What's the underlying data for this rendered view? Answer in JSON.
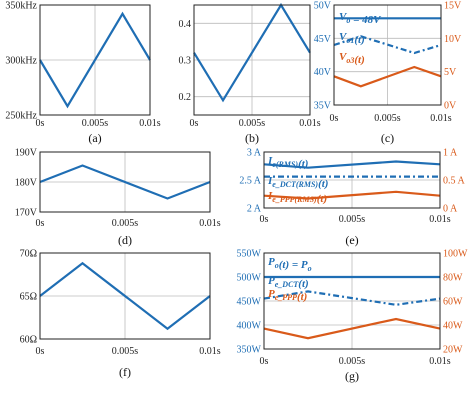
{
  "colors": {
    "blue": "#1f6eb4",
    "orange": "#d95a1a",
    "grid": "#bbbbbb",
    "frame": "#222222"
  },
  "chart_data": [
    {
      "id": "a",
      "caption": "(a)",
      "type": "line",
      "xlim": [
        0,
        0.01
      ],
      "ylim": [
        250,
        350
      ],
      "xticks": [
        {
          "v": 0,
          "label": "0s"
        },
        {
          "v": 0.005,
          "label": "0.005s"
        },
        {
          "v": 0.01,
          "label": "0.01s"
        }
      ],
      "yticks": [
        {
          "v": 250,
          "label": "250kHz"
        },
        {
          "v": 300,
          "label": "300kHz"
        },
        {
          "v": 350,
          "label": "350kHz"
        }
      ],
      "series": [
        {
          "axis": "left",
          "color": "blue",
          "dash": "",
          "x": [
            0,
            0.0025,
            0.0075,
            0.01
          ],
          "y": [
            300,
            258,
            342,
            300
          ]
        }
      ]
    },
    {
      "id": "b",
      "caption": "(b)",
      "type": "line",
      "xlim": [
        0,
        0.01
      ],
      "ylim": [
        0.15,
        0.45
      ],
      "xticks": [
        {
          "v": 0,
          "label": "0s"
        },
        {
          "v": 0.005,
          "label": "0.005s"
        },
        {
          "v": 0.01,
          "label": "0.01s"
        }
      ],
      "yticks": [
        {
          "v": 0.2,
          "label": "0.2"
        },
        {
          "v": 0.3,
          "label": "0.3"
        },
        {
          "v": 0.4,
          "label": "0.4"
        }
      ],
      "series": [
        {
          "axis": "left",
          "color": "blue",
          "dash": "",
          "x": [
            0,
            0.0025,
            0.0075,
            0.01
          ],
          "y": [
            0.32,
            0.19,
            0.45,
            0.32
          ]
        }
      ]
    },
    {
      "id": "c",
      "caption": "(c)",
      "type": "line",
      "xlim": [
        0,
        0.01
      ],
      "ylim": [
        35,
        50
      ],
      "ylim_right": [
        0,
        15
      ],
      "xticks": [
        {
          "v": 0,
          "label": "0s"
        },
        {
          "v": 0.005,
          "label": "0.005s"
        },
        {
          "v": 0.01,
          "label": "0.01s"
        }
      ],
      "yticks": [
        {
          "v": 35,
          "label": "35V"
        },
        {
          "v": 40,
          "label": "40V"
        },
        {
          "v": 45,
          "label": "45V"
        },
        {
          "v": 50,
          "label": "50V"
        }
      ],
      "yticks_right": [
        {
          "v": 0,
          "label": "0V"
        },
        {
          "v": 5,
          "label": "5V"
        },
        {
          "v": 10,
          "label": "10V"
        },
        {
          "v": 15,
          "label": "15V"
        }
      ],
      "series": [
        {
          "axis": "left",
          "color": "blue",
          "dash": "",
          "x": [
            0,
            0.01
          ],
          "y": [
            48,
            48
          ]
        },
        {
          "axis": "left",
          "color": "blue",
          "dash": "6,3,2,3",
          "x": [
            0,
            0.0025,
            0.0075,
            0.01
          ],
          "y": [
            44,
            45.3,
            42.8,
            44
          ]
        },
        {
          "axis": "right",
          "color": "orange",
          "dash": "",
          "x": [
            0,
            0.0025,
            0.0075,
            0.01
          ],
          "y": [
            4.3,
            2.8,
            5.7,
            4.3
          ]
        }
      ],
      "legend": [
        {
          "color": "blue",
          "parts": [
            {
              "t": "V"
            },
            {
              "t": "o",
              "sub": true
            },
            {
              "t": " = 48V"
            }
          ]
        },
        {
          "color": "blue",
          "parts": [
            {
              "t": "V"
            },
            {
              "t": "o1",
              "sub": true
            },
            {
              "t": "(t)"
            }
          ]
        },
        {
          "color": "orange",
          "parts": [
            {
              "t": "V"
            },
            {
              "t": "o3",
              "sub": true
            },
            {
              "t": "(t)"
            }
          ]
        }
      ]
    },
    {
      "id": "d",
      "caption": "(d)",
      "type": "line",
      "xlim": [
        0,
        0.01
      ],
      "ylim": [
        170,
        190
      ],
      "xticks": [
        {
          "v": 0,
          "label": "0s"
        },
        {
          "v": 0.005,
          "label": "0.005s"
        },
        {
          "v": 0.01,
          "label": "0.01s"
        }
      ],
      "yticks": [
        {
          "v": 170,
          "label": "170V"
        },
        {
          "v": 180,
          "label": "180V"
        },
        {
          "v": 190,
          "label": "190V"
        }
      ],
      "series": [
        {
          "axis": "left",
          "color": "blue",
          "dash": "",
          "x": [
            0,
            0.0025,
            0.0075,
            0.01
          ],
          "y": [
            180,
            185.5,
            174.5,
            180
          ]
        }
      ]
    },
    {
      "id": "e",
      "caption": "(e)",
      "type": "line",
      "xlim": [
        0,
        0.01
      ],
      "ylim": [
        2,
        3
      ],
      "ylim_right": [
        0,
        1
      ],
      "xticks": [
        {
          "v": 0,
          "label": "0s"
        },
        {
          "v": 0.005,
          "label": "0.005s"
        },
        {
          "v": 0.01,
          "label": "0.01s"
        }
      ],
      "yticks": [
        {
          "v": 2,
          "label": "2 A"
        },
        {
          "v": 2.5,
          "label": "2.5 A"
        },
        {
          "v": 3,
          "label": "3 A"
        }
      ],
      "yticks_right": [
        {
          "v": 0,
          "label": "0 A"
        },
        {
          "v": 0.5,
          "label": "0.5 A"
        },
        {
          "v": 1,
          "label": "1 A"
        }
      ],
      "series": [
        {
          "axis": "left",
          "color": "blue",
          "dash": "",
          "x": [
            0,
            0.0025,
            0.0075,
            0.01
          ],
          "y": [
            2.78,
            2.72,
            2.83,
            2.78
          ]
        },
        {
          "axis": "left",
          "color": "blue",
          "dash": "6,3,2,3",
          "x": [
            0,
            0.01
          ],
          "y": [
            2.56,
            2.56
          ]
        },
        {
          "axis": "right",
          "color": "orange",
          "dash": "",
          "x": [
            0,
            0.0025,
            0.0075,
            0.01
          ],
          "y": [
            0.22,
            0.17,
            0.29,
            0.22
          ]
        }
      ],
      "legend": [
        {
          "color": "blue",
          "parts": [
            {
              "t": "I"
            },
            {
              "t": "e(RMS)",
              "sub": true
            },
            {
              "t": "(t)"
            }
          ]
        },
        {
          "color": "blue",
          "parts": [
            {
              "t": "I"
            },
            {
              "t": "e_DCT(RMS)",
              "sub": true
            },
            {
              "t": "(t)"
            }
          ]
        },
        {
          "color": "orange",
          "parts": [
            {
              "t": "I"
            },
            {
              "t": "e_PPP(RMS)",
              "sub": true
            },
            {
              "t": "(t)"
            }
          ]
        }
      ]
    },
    {
      "id": "f",
      "caption": "(f)",
      "type": "line",
      "xlim": [
        0,
        0.01
      ],
      "ylim": [
        60,
        70
      ],
      "xticks": [
        {
          "v": 0,
          "label": "0s"
        },
        {
          "v": 0.005,
          "label": "0.005s"
        },
        {
          "v": 0.01,
          "label": "0.01s"
        }
      ],
      "yticks": [
        {
          "v": 60,
          "label": "60Ω"
        },
        {
          "v": 65,
          "label": "65Ω"
        },
        {
          "v": 70,
          "label": "70Ω"
        }
      ],
      "series": [
        {
          "axis": "left",
          "color": "blue",
          "dash": "",
          "x": [
            0,
            0.0025,
            0.0075,
            0.01
          ],
          "y": [
            65,
            68.8,
            61.2,
            65
          ]
        }
      ]
    },
    {
      "id": "g",
      "caption": "(g)",
      "type": "line",
      "xlim": [
        0,
        0.01
      ],
      "ylim": [
        350,
        550
      ],
      "ylim_right": [
        20,
        100
      ],
      "xticks": [
        {
          "v": 0,
          "label": "0s"
        },
        {
          "v": 0.005,
          "label": "0.005s"
        },
        {
          "v": 0.01,
          "label": "0.01s"
        }
      ],
      "yticks": [
        {
          "v": 350,
          "label": "350W"
        },
        {
          "v": 400,
          "label": "400W"
        },
        {
          "v": 450,
          "label": "450W"
        },
        {
          "v": 500,
          "label": "500W"
        },
        {
          "v": 550,
          "label": "550W"
        }
      ],
      "yticks_right": [
        {
          "v": 20,
          "label": "20W"
        },
        {
          "v": 40,
          "label": "40W"
        },
        {
          "v": 60,
          "label": "60W"
        },
        {
          "v": 80,
          "label": "80W"
        },
        {
          "v": 100,
          "label": "100W"
        }
      ],
      "series": [
        {
          "axis": "left",
          "color": "blue",
          "dash": "",
          "x": [
            0,
            0.01
          ],
          "y": [
            500,
            500
          ]
        },
        {
          "axis": "left",
          "color": "blue",
          "dash": "6,3,2,3",
          "x": [
            0,
            0.0025,
            0.0075,
            0.01
          ],
          "y": [
            455,
            470,
            442,
            455
          ]
        },
        {
          "axis": "right",
          "color": "orange",
          "dash": "",
          "x": [
            0,
            0.0025,
            0.0075,
            0.01
          ],
          "y": [
            37,
            29,
            45,
            37
          ]
        }
      ],
      "legend": [
        {
          "color": "blue",
          "parts": [
            {
              "t": "P"
            },
            {
              "t": "o",
              "sub": true
            },
            {
              "t": "(t) = "
            },
            {
              "t": "P"
            },
            {
              "t": "o",
              "sub": true
            }
          ]
        },
        {
          "color": "blue",
          "parts": [
            {
              "t": "P"
            },
            {
              "t": "e_DCT",
              "sub": true
            },
            {
              "t": "(t)"
            }
          ]
        },
        {
          "color": "orange",
          "parts": [
            {
              "t": "P"
            },
            {
              "t": "e_PPP",
              "sub": true
            },
            {
              "t": "(t)"
            }
          ]
        }
      ]
    }
  ]
}
